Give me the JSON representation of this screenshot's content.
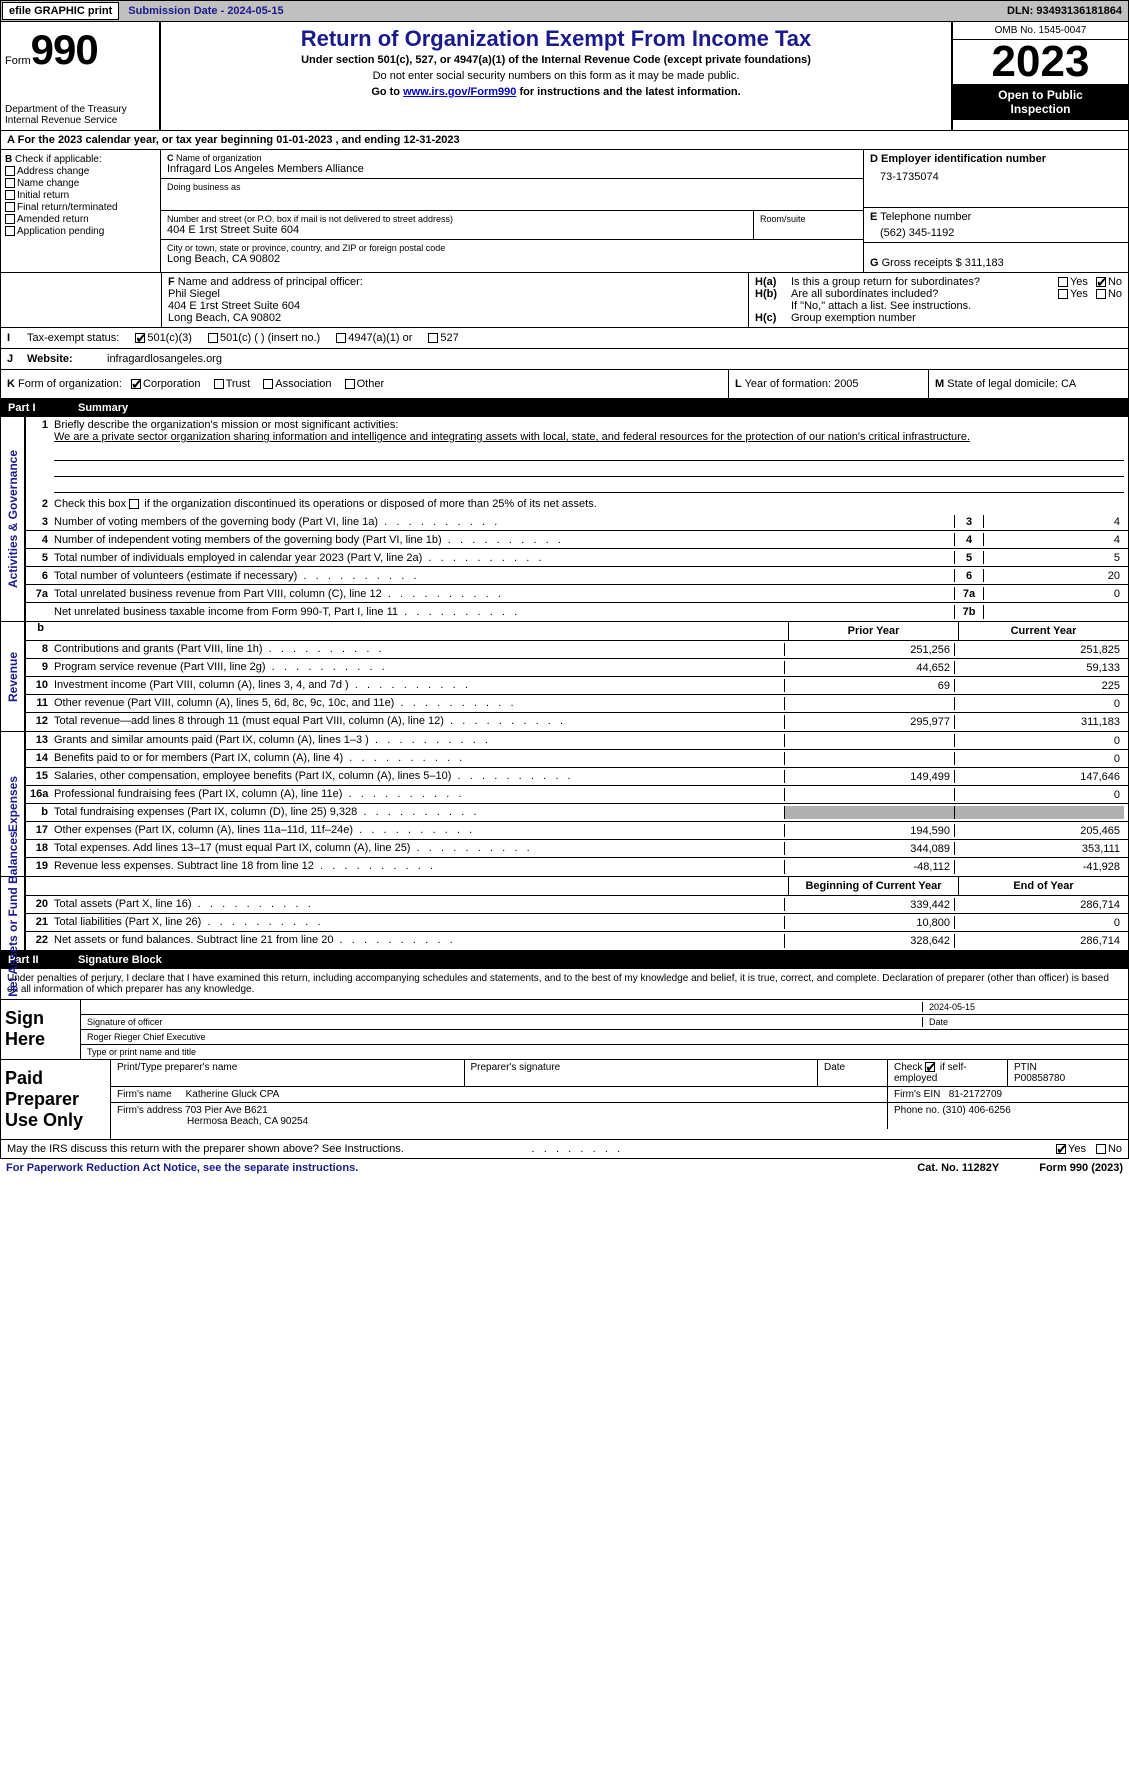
{
  "topbar": {
    "efile_label": "efile GRAPHIC print",
    "submission": "Submission Date - 2024-05-15",
    "dln": "DLN: 93493136181864"
  },
  "header": {
    "form_prefix": "Form",
    "form_no": "990",
    "dept": "Department of the Treasury",
    "irs": "Internal Revenue Service",
    "title": "Return of Organization Exempt From Income Tax",
    "subtitle1": "Under section 501(c), 527, or 4947(a)(1) of the Internal Revenue Code (except private foundations)",
    "subtitle2": "Do not enter social security numbers on this form as it may be made public.",
    "subtitle3_prefix": "Go to ",
    "subtitle3_link": "www.irs.gov/Form990",
    "subtitle3_suffix": " for instructions and the latest information.",
    "omb": "OMB No. 1545-0047",
    "year": "2023",
    "open1": "Open to Public",
    "open2": "Inspection"
  },
  "section_a": {
    "label": "A",
    "text": "For the 2023 calendar year, or tax year beginning 01-01-2023    , and ending 12-31-2023"
  },
  "section_b": {
    "label": "B",
    "check_label": "Check if applicable:",
    "opts": [
      "Address change",
      "Name change",
      "Initial return",
      "Final return/terminated",
      "Amended return",
      "Application pending"
    ]
  },
  "section_c": {
    "label": "C",
    "name_label": "Name of organization",
    "name": "Infragard Los Angeles Members Alliance",
    "dba_label": "Doing business as",
    "street_label": "Number and street (or P.O. box if mail is not delivered to street address)",
    "street": "404 E 1rst Street Suite 604",
    "room_label": "Room/suite",
    "city_label": "City or town, state or province, country, and ZIP or foreign postal code",
    "city": "Long Beach, CA  90802"
  },
  "section_d": {
    "label": "D",
    "ein_label": "Employer identification number",
    "ein": "73-1735074"
  },
  "section_e": {
    "label": "E",
    "tel_label": "Telephone number",
    "tel": "(562) 345-1192"
  },
  "section_g": {
    "label": "G",
    "gross_label": "Gross receipts $",
    "gross": "311,183"
  },
  "section_f": {
    "label": "F",
    "label_text": "Name and address of principal officer:",
    "name": "Phil Siegel",
    "addr1": "404 E 1rst Street Suite 604",
    "addr2": "Long Beach, CA  90802"
  },
  "section_h": {
    "ha_label": "H(a)",
    "ha_text": "Is this a group return for subordinates?",
    "hb_label": "H(b)",
    "hb_text": "Are all subordinates included?",
    "hb_note": "If \"No,\" attach a list. See instructions.",
    "hc_label": "H(c)",
    "hc_text": "Group exemption number",
    "yes": "Yes",
    "no": "No"
  },
  "section_i": {
    "label": "I",
    "text": "Tax-exempt status:",
    "opts": [
      "501(c)(3)",
      "501(c) (  ) (insert no.)",
      "4947(a)(1) or",
      "527"
    ]
  },
  "section_j": {
    "label": "J",
    "text": "Website:",
    "value": "infragardlosangeles.org"
  },
  "section_k": {
    "label": "K",
    "text": "Form of organization:",
    "opts": [
      "Corporation",
      "Trust",
      "Association",
      "Other"
    ]
  },
  "section_l": {
    "label": "L",
    "text": "Year of formation: 2005"
  },
  "section_m": {
    "label": "M",
    "text": "State of legal domicile: CA"
  },
  "part1": {
    "no": "Part I",
    "title": "Summary"
  },
  "summary": {
    "line1_label": "1",
    "line1_text": "Briefly describe the organization's mission or most significant activities:",
    "line1_mission": "We are a private sector organization sharing information and intelligence and integrating assets with local, state, and federal resources for the protection of our nation's critical infrastructure.",
    "line2_label": "2",
    "line2_text": "Check this box      if the organization discontinued its operations or disposed of more than 25% of its net assets.",
    "gov_lines": [
      {
        "no": "3",
        "text": "Number of voting members of the governing body (Part VI, line 1a)",
        "cell": "3",
        "val": "4"
      },
      {
        "no": "4",
        "text": "Number of independent voting members of the governing body (Part VI, line 1b)",
        "cell": "4",
        "val": "4"
      },
      {
        "no": "5",
        "text": "Total number of individuals employed in calendar year 2023 (Part V, line 2a)",
        "cell": "5",
        "val": "5"
      },
      {
        "no": "6",
        "text": "Total number of volunteers (estimate if necessary)",
        "cell": "6",
        "val": "20"
      },
      {
        "no": "7a",
        "text": "Total unrelated business revenue from Part VIII, column (C), line 12",
        "cell": "7a",
        "val": "0"
      },
      {
        "no": "",
        "text": "Net unrelated business taxable income from Form 990-T, Part I, line 11",
        "cell": "7b",
        "val": ""
      }
    ]
  },
  "gov_label": "Activities & Governance",
  "rev_label": "Revenue",
  "exp_label": "Expenses",
  "net_label": "Net Assets or Fund Balances",
  "col_prior": "Prior Year",
  "col_current": "Current Year",
  "col_beg": "Beginning of Current Year",
  "col_end": "End of Year",
  "revenue_lines": [
    {
      "no": "8",
      "text": "Contributions and grants (Part VIII, line 1h)",
      "prior": "251,256",
      "curr": "251,825"
    },
    {
      "no": "9",
      "text": "Program service revenue (Part VIII, line 2g)",
      "prior": "44,652",
      "curr": "59,133"
    },
    {
      "no": "10",
      "text": "Investment income (Part VIII, column (A), lines 3, 4, and 7d )",
      "prior": "69",
      "curr": "225"
    },
    {
      "no": "11",
      "text": "Other revenue (Part VIII, column (A), lines 5, 6d, 8c, 9c, 10c, and 11e)",
      "prior": "",
      "curr": "0"
    },
    {
      "no": "12",
      "text": "Total revenue—add lines 8 through 11 (must equal Part VIII, column (A), line 12)",
      "prior": "295,977",
      "curr": "311,183"
    }
  ],
  "expense_lines": [
    {
      "no": "13",
      "text": "Grants and similar amounts paid (Part IX, column (A), lines 1–3 )",
      "prior": "",
      "curr": "0"
    },
    {
      "no": "14",
      "text": "Benefits paid to or for members (Part IX, column (A), line 4)",
      "prior": "",
      "curr": "0"
    },
    {
      "no": "15",
      "text": "Salaries, other compensation, employee benefits (Part IX, column (A), lines 5–10)",
      "prior": "149,499",
      "curr": "147,646"
    },
    {
      "no": "16a",
      "text": "Professional fundraising fees (Part IX, column (A), line 11e)",
      "prior": "",
      "curr": "0"
    },
    {
      "no": "b",
      "text": "Total fundraising expenses (Part IX, column (D), line 25) 9,328",
      "prior": "grey",
      "curr": "grey"
    },
    {
      "no": "17",
      "text": "Other expenses (Part IX, column (A), lines 11a–11d, 11f–24e)",
      "prior": "194,590",
      "curr": "205,465"
    },
    {
      "no": "18",
      "text": "Total expenses. Add lines 13–17 (must equal Part IX, column (A), line 25)",
      "prior": "344,089",
      "curr": "353,111"
    },
    {
      "no": "19",
      "text": "Revenue less expenses. Subtract line 18 from line 12",
      "prior": "-48,112",
      "curr": "-41,928"
    }
  ],
  "net_lines": [
    {
      "no": "20",
      "text": "Total assets (Part X, line 16)",
      "prior": "339,442",
      "curr": "286,714"
    },
    {
      "no": "21",
      "text": "Total liabilities (Part X, line 26)",
      "prior": "10,800",
      "curr": "0"
    },
    {
      "no": "22",
      "text": "Net assets or fund balances. Subtract line 21 from line 20",
      "prior": "328,642",
      "curr": "286,714"
    }
  ],
  "part2": {
    "no": "Part II",
    "title": "Signature Block"
  },
  "sig": {
    "declaration": "Under penalties of perjury, I declare that I have examined this return, including accompanying schedules and statements, and to the best of my knowledge and belief, it is true, correct, and complete. Declaration of preparer (other than officer) is based on all information of which preparer has any knowledge.",
    "sign_here": "Sign Here",
    "sig_officer": "Signature of officer",
    "date_label": "Date",
    "officer_name": "Roger Rieger  Chief Executive",
    "type_label": "Type or print name and title",
    "date_val": "2024-05-15"
  },
  "paid": {
    "label": "Paid Preparer Use Only",
    "print_name_label": "Print/Type preparer's name",
    "sig_label": "Preparer's signature",
    "date_label": "Date",
    "check_label": "Check        if self-employed",
    "ptin_label": "PTIN",
    "ptin": "P00858780",
    "firm_name_label": "Firm's name",
    "firm_name": "Katherine Gluck CPA",
    "firm_ein_label": "Firm's EIN",
    "firm_ein": "81-2172709",
    "firm_addr_label": "Firm's address",
    "firm_addr1": "703 Pier Ave B621",
    "firm_addr2": "Hermosa Beach, CA  90254",
    "phone_label": "Phone no.",
    "phone": "(310) 406-6256"
  },
  "footer": {
    "discuss": "May the IRS discuss this return with the preparer shown above? See Instructions.",
    "yes": "Yes",
    "no": "No",
    "pra": "For Paperwork Reduction Act Notice, see the separate instructions.",
    "cat": "Cat. No. 11282Y",
    "form": "Form 990 (2023)"
  },
  "b_sig_no": "b"
}
